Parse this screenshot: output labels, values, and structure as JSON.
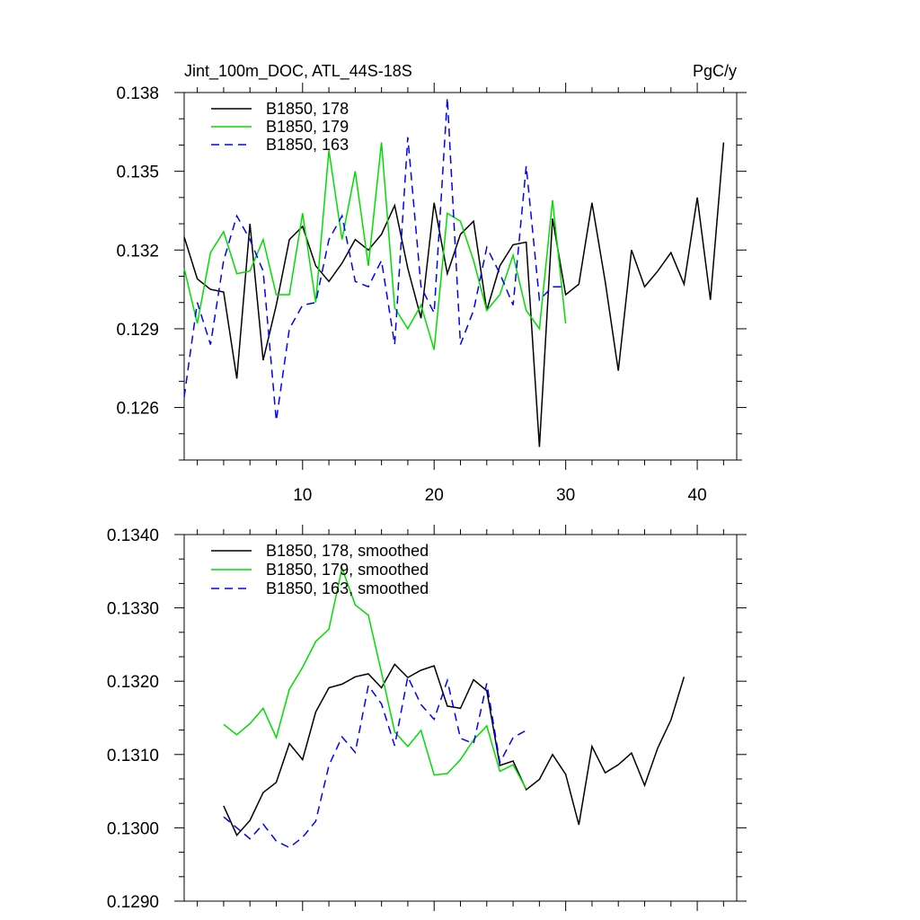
{
  "chart_data": [
    {
      "type": "line",
      "title": "Jint_100m_DOC, ATL_44S-18S",
      "units": "PgC/y",
      "xlim": [
        1,
        43
      ],
      "ylim": [
        0.124,
        0.138
      ],
      "xticks": [
        10,
        20,
        30,
        40
      ],
      "xtick_labels": [
        "10",
        "20",
        "30",
        "40"
      ],
      "yticks": [
        0.126,
        0.129,
        0.132,
        0.135,
        0.138
      ],
      "ytick_labels": [
        "0.126",
        "0.129",
        "0.132",
        "0.135",
        "0.138"
      ],
      "grid": false,
      "legend_position": "top-left",
      "series": [
        {
          "name": "B1850, 178",
          "color": "#000000",
          "dash": "solid",
          "x": [
            1,
            2,
            3,
            4,
            5,
            6,
            7,
            8,
            9,
            10,
            11,
            12,
            13,
            14,
            15,
            16,
            17,
            18,
            19,
            20,
            21,
            22,
            23,
            24,
            25,
            26,
            27,
            28,
            29,
            30,
            31,
            32,
            33,
            34,
            35,
            36,
            37,
            38,
            39,
            40,
            41,
            42
          ],
          "values": [
            0.1325,
            0.1309,
            0.1305,
            0.1304,
            0.1271,
            0.133,
            0.1278,
            0.1299,
            0.1324,
            0.1329,
            0.1314,
            0.1308,
            0.1315,
            0.1324,
            0.132,
            0.1326,
            0.1337,
            0.1313,
            0.1294,
            0.1338,
            0.1311,
            0.1326,
            0.1331,
            0.1297,
            0.1314,
            0.1322,
            0.1323,
            0.1245,
            0.1332,
            0.1303,
            0.1307,
            0.1338,
            0.1308,
            0.1274,
            0.132,
            0.1306,
            0.1312,
            0.1319,
            0.1307,
            0.134,
            0.1301,
            0.1361
          ]
        },
        {
          "name": "B1850, 179",
          "color": "#00dd00",
          "dash": "solid",
          "x": [
            1,
            2,
            3,
            4,
            5,
            6,
            7,
            8,
            9,
            10,
            11,
            12,
            13,
            14,
            15,
            16,
            17,
            18,
            19,
            20,
            21,
            22,
            23,
            24,
            25,
            26,
            27,
            28,
            29,
            30
          ],
          "values": [
            0.1313,
            0.1292,
            0.1319,
            0.1327,
            0.1311,
            0.1312,
            0.1324,
            0.1303,
            0.1303,
            0.1334,
            0.13,
            0.1358,
            0.1324,
            0.135,
            0.1314,
            0.1361,
            0.1298,
            0.129,
            0.1299,
            0.1282,
            0.1334,
            0.1331,
            0.1316,
            0.1297,
            0.1303,
            0.1318,
            0.1297,
            0.129,
            0.1339,
            0.1292
          ]
        },
        {
          "name": "B1850, 163",
          "color": "#0000ff",
          "dash": "dashed",
          "x": [
            1,
            2,
            3,
            4,
            5,
            6,
            7,
            8,
            9,
            10,
            11,
            12,
            13,
            14,
            15,
            16,
            17,
            18,
            19,
            20,
            21,
            22,
            23,
            24,
            25,
            26,
            27,
            28,
            29,
            30
          ],
          "values": [
            0.1264,
            0.13,
            0.1284,
            0.1316,
            0.1333,
            0.1324,
            0.1312,
            0.1255,
            0.129,
            0.1299,
            0.13,
            0.1324,
            0.1333,
            0.1308,
            0.1306,
            0.1316,
            0.1284,
            0.1363,
            0.1306,
            0.1296,
            0.1378,
            0.1284,
            0.1297,
            0.1321,
            0.1311,
            0.1299,
            0.1352,
            0.1301,
            0.1306,
            0.1306
          ]
        }
      ]
    },
    {
      "type": "line",
      "title": "",
      "units": "",
      "xlim": [
        1,
        43
      ],
      "ylim": [
        0.129,
        0.134
      ],
      "xticks": [
        10,
        20,
        30,
        40
      ],
      "xtick_labels": [],
      "yticks": [
        0.129,
        0.13,
        0.131,
        0.132,
        0.133,
        0.134
      ],
      "ytick_labels": [
        "0.1290",
        "0.1300",
        "0.1310",
        "0.1320",
        "0.1330",
        "0.1340"
      ],
      "grid": false,
      "legend_position": "top-left",
      "series": [
        {
          "name": "B1850, 178, smoothed",
          "color": "#000000",
          "dash": "solid",
          "x": [
            4,
            5,
            6,
            7,
            8,
            9,
            10,
            11,
            12,
            13,
            14,
            15,
            16,
            17,
            18,
            19,
            20,
            21,
            22,
            23,
            24,
            25,
            26,
            27,
            28,
            29,
            30,
            31,
            32,
            33,
            34,
            35,
            36,
            37,
            38,
            39
          ],
          "values": [
            0.1303,
            0.1299,
            0.1301,
            0.13048,
            0.13062,
            0.13115,
            0.13093,
            0.13158,
            0.13191,
            0.13196,
            0.13206,
            0.1321,
            0.13191,
            0.13223,
            0.13205,
            0.13215,
            0.13221,
            0.13166,
            0.13163,
            0.13202,
            0.13187,
            0.13085,
            0.13091,
            0.13052,
            0.13066,
            0.131,
            0.13073,
            0.13004,
            0.13111,
            0.13075,
            0.13086,
            0.13102,
            0.13058,
            0.13109,
            0.13147,
            0.13206
          ]
        },
        {
          "name": "B1850, 179, smoothed",
          "color": "#00dd00",
          "dash": "solid",
          "x": [
            4,
            5,
            6,
            7,
            8,
            9,
            10,
            11,
            12,
            13,
            14,
            15,
            16,
            17,
            18,
            19,
            20,
            21,
            22,
            23,
            24,
            25,
            26,
            27
          ],
          "values": [
            0.13141,
            0.13127,
            0.13142,
            0.13163,
            0.13123,
            0.13189,
            0.13219,
            0.13254,
            0.13271,
            0.13354,
            0.13304,
            0.1329,
            0.13212,
            0.13131,
            0.13111,
            0.13133,
            0.13072,
            0.13074,
            0.13093,
            0.1312,
            0.13139,
            0.13077,
            0.13086,
            0.13053
          ]
        },
        {
          "name": "B1850, 163, smoothed",
          "color": "#0000ff",
          "dash": "dashed",
          "x": [
            4,
            5,
            6,
            7,
            8,
            9,
            10,
            11,
            12,
            13,
            14,
            15,
            16,
            17,
            18,
            19,
            20,
            21,
            22,
            23,
            24,
            25,
            26,
            27
          ],
          "values": [
            0.13015,
            0.13,
            0.12985,
            0.13005,
            0.12982,
            0.12973,
            0.12987,
            0.13009,
            0.13085,
            0.13124,
            0.13103,
            0.13194,
            0.13169,
            0.13112,
            0.13206,
            0.13168,
            0.13148,
            0.13201,
            0.13122,
            0.13115,
            0.13197,
            0.13089,
            0.13123,
            0.13133
          ]
        }
      ]
    }
  ]
}
